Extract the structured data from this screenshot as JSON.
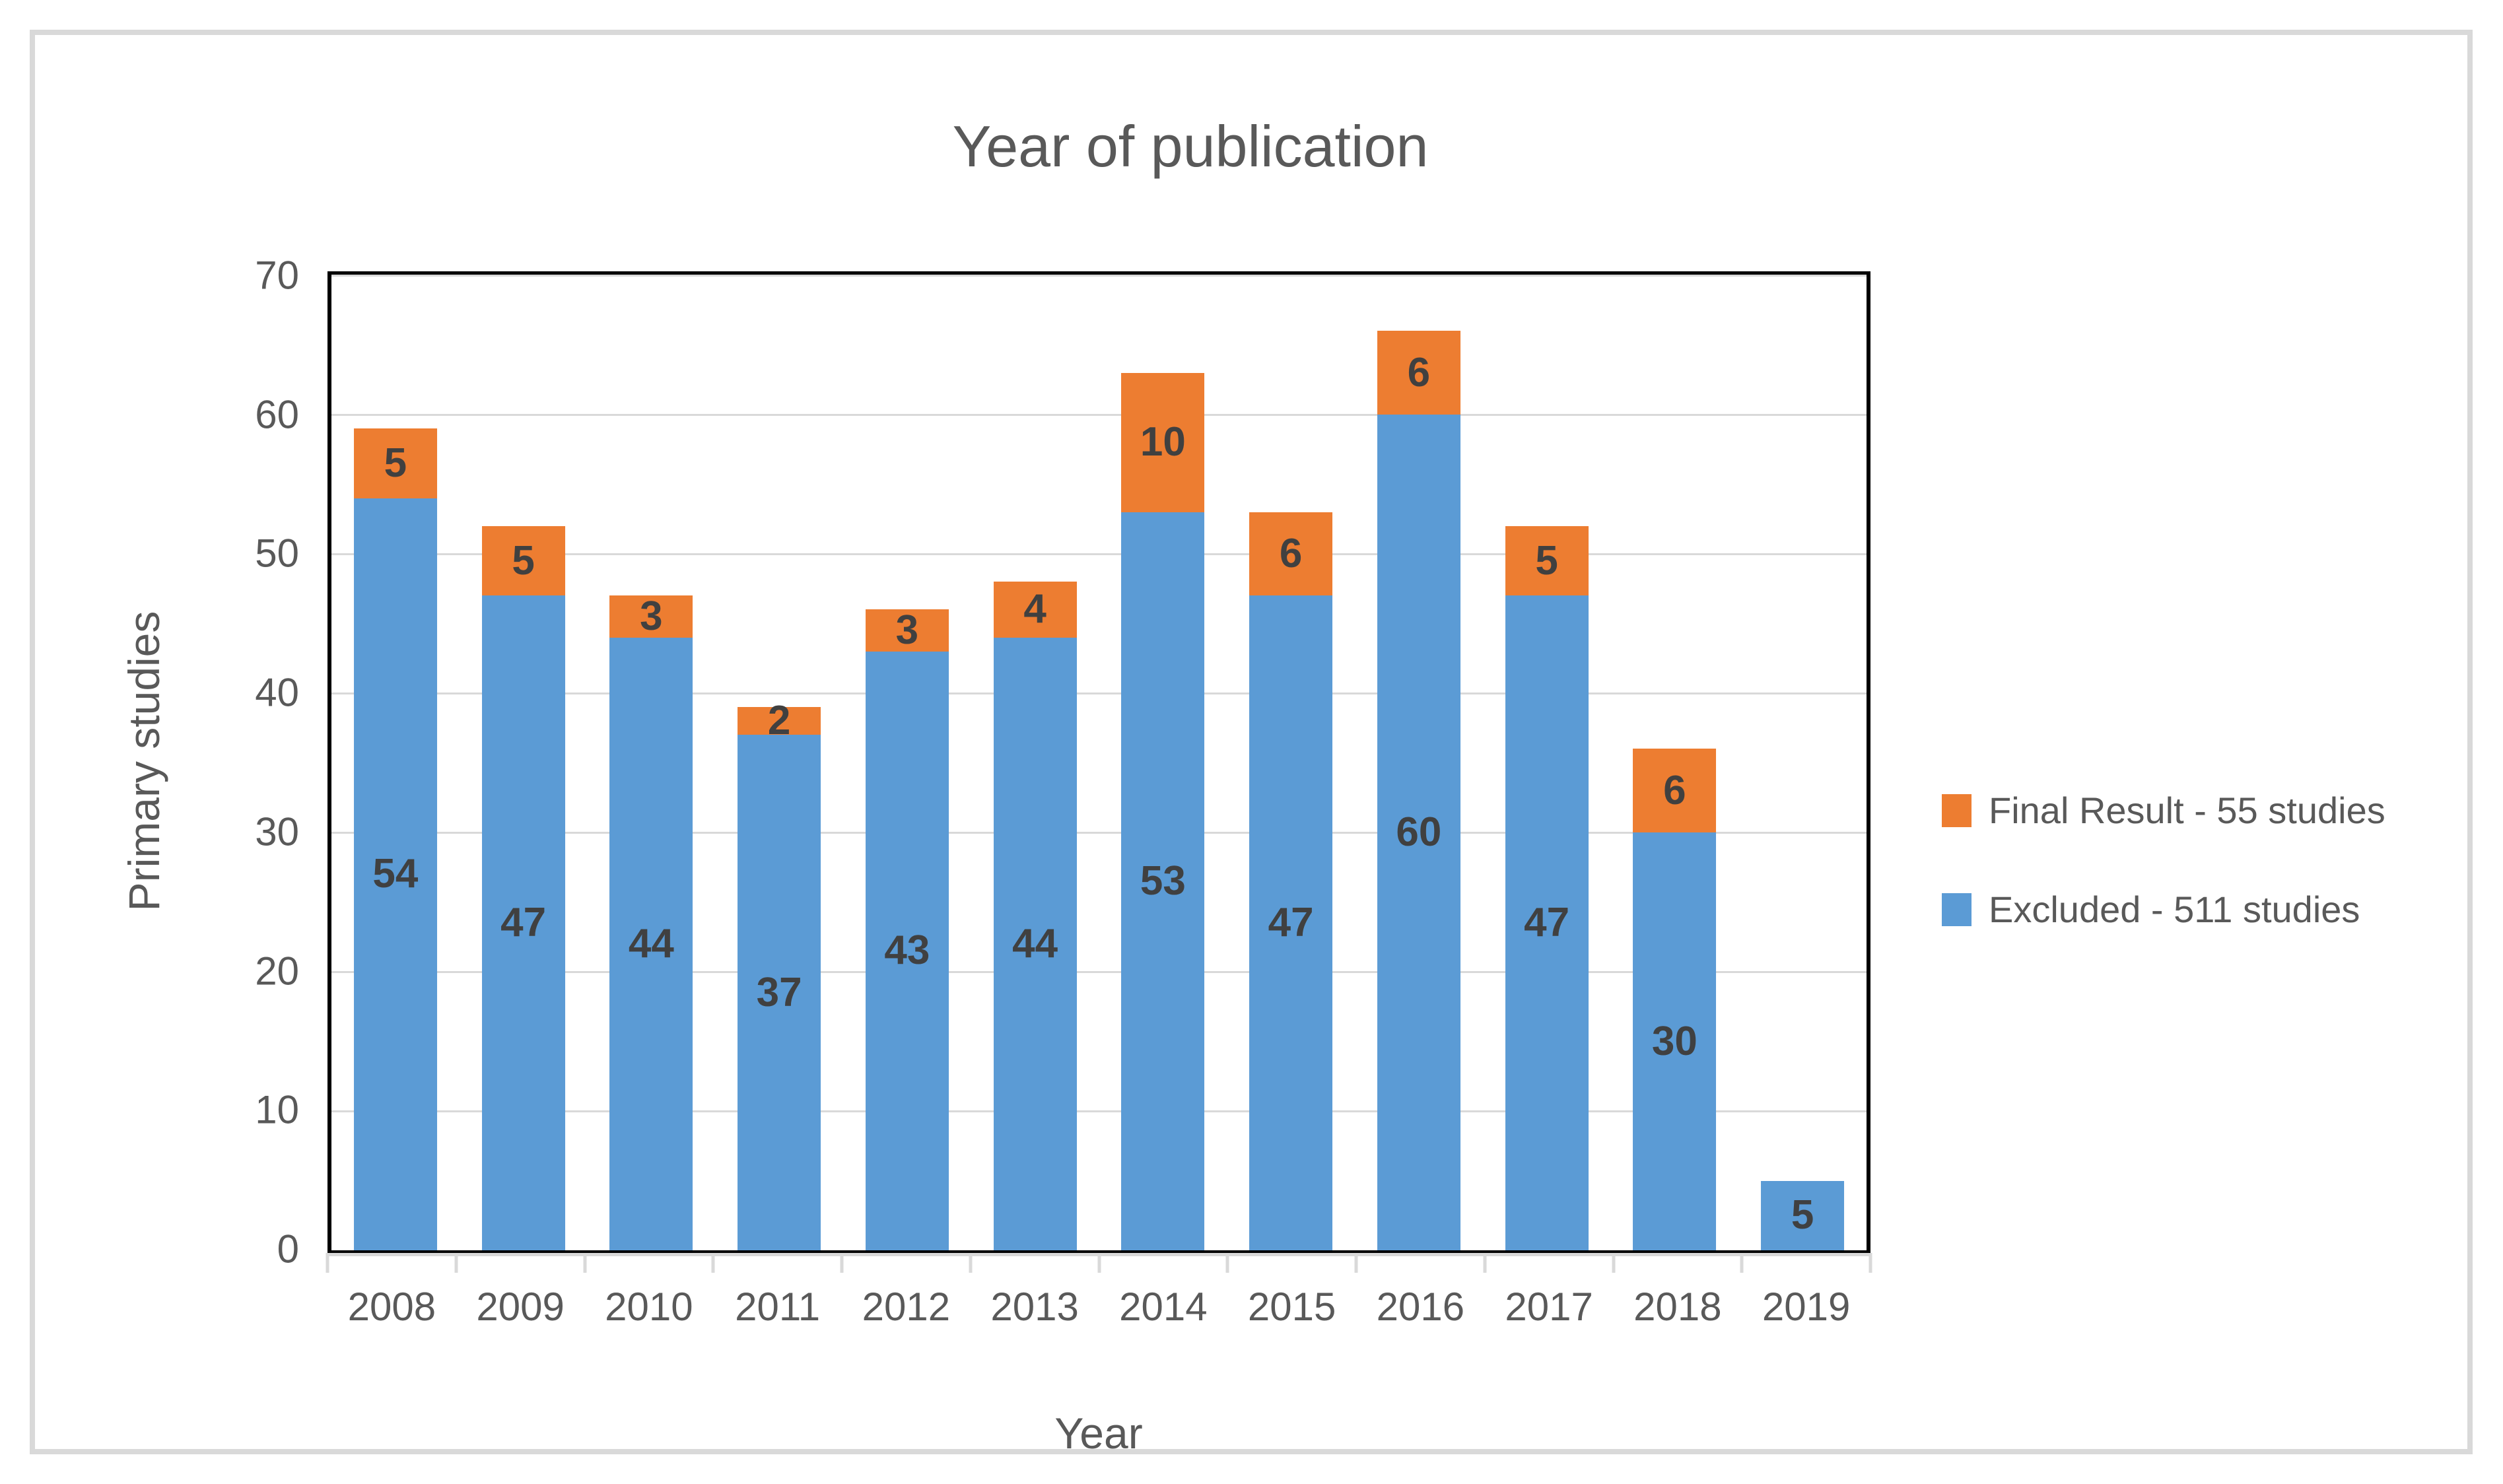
{
  "chart_data": {
    "type": "bar",
    "stacked": true,
    "title": "Year of publication",
    "xlabel": "Year",
    "ylabel": "Primary studies",
    "ylim": [
      0,
      70
    ],
    "yticks": [
      0,
      10,
      20,
      30,
      40,
      50,
      60,
      70
    ],
    "grid": true,
    "data_labels": true,
    "categories": [
      "2008",
      "2009",
      "2010",
      "2011",
      "2012",
      "2013",
      "2014",
      "2015",
      "2016",
      "2017",
      "2018",
      "2019"
    ],
    "series": [
      {
        "name": "Excluded - 511 studies",
        "color": "#5B9BD5",
        "values": [
          54,
          47,
          44,
          37,
          43,
          44,
          53,
          47,
          60,
          47,
          30,
          5
        ]
      },
      {
        "name": "Final Result - 55 studies",
        "color": "#ED7D31",
        "values": [
          5,
          5,
          3,
          2,
          3,
          4,
          10,
          6,
          6,
          5,
          6,
          0
        ]
      }
    ],
    "legend": {
      "position": "right",
      "items": [
        {
          "label": "Final Result - 55 studies",
          "color": "#ED7D31"
        },
        {
          "label": "Excluded - 511 studies",
          "color": "#5B9BD5"
        }
      ]
    }
  },
  "colors": {
    "background": "#FFFFFF",
    "frame_border": "#D9D9D9",
    "plot_border": "#000000",
    "gridline": "#D9D9D9",
    "axis_line": "#D9D9D9",
    "axis_text": "#595959",
    "title_text": "#595959",
    "bar_label": "#404040"
  }
}
